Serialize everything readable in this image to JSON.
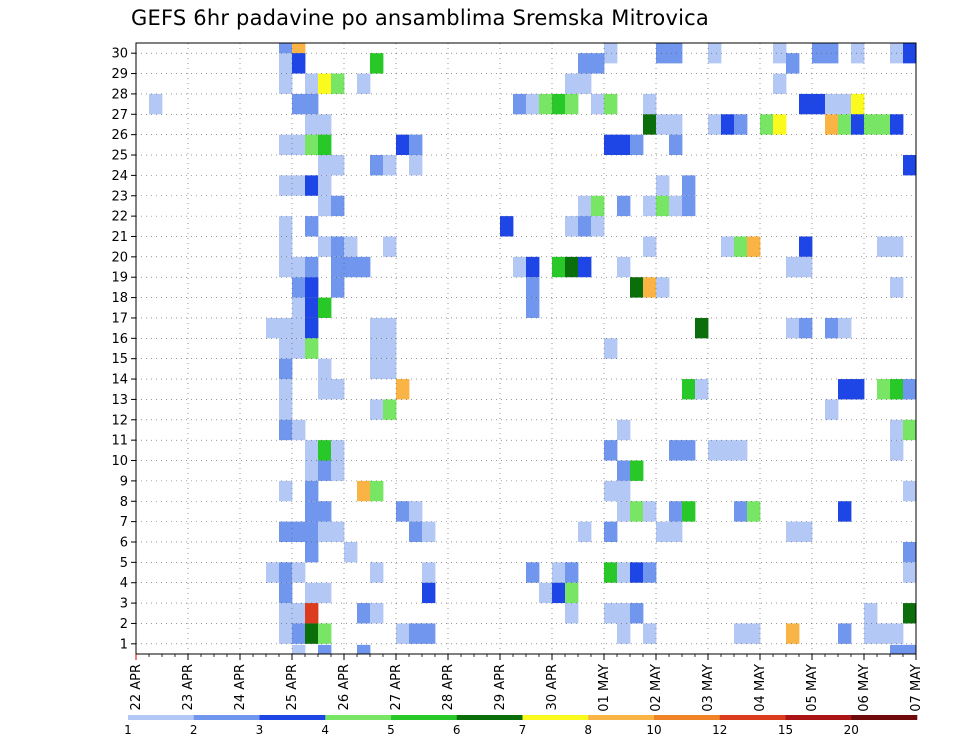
{
  "chart_data": {
    "type": "heatmap",
    "title": "GEFS 6hr padavine po ansamblima Sremska Mitrovica",
    "xlabel": "",
    "ylabel": "",
    "x_tick_labels": [
      "22 APR",
      "23 APR",
      "24 APR",
      "25 APR",
      "26 APR",
      "27 APR",
      "28 APR",
      "29 APR",
      "30 APR",
      "01 MAY",
      "02 MAY",
      "03 MAY",
      "04 MAY",
      "05 MAY",
      "06 MAY",
      "07 MAY"
    ],
    "y_tick_labels": [
      1,
      2,
      3,
      4,
      5,
      6,
      7,
      8,
      9,
      10,
      11,
      12,
      13,
      14,
      15,
      16,
      17,
      18,
      19,
      20,
      21,
      22,
      23,
      24,
      25,
      26,
      27,
      28,
      29,
      30
    ],
    "time_step_hours": 6,
    "steps": 60,
    "members": 30,
    "grid": true,
    "legend_placement": "bottom",
    "colorbar": {
      "labels": [
        "1",
        "2",
        "3",
        "4",
        "5",
        "6",
        "7",
        "8",
        "10",
        "12",
        "15",
        "20"
      ],
      "colors": [
        "#b4c8f5",
        "#7096ee",
        "#1e46e6",
        "#78e664",
        "#28c828",
        "#0a6e0a",
        "#fafa1e",
        "#fab446",
        "#f08228",
        "#dc3c1e",
        "#aa1414",
        "#6e0a0a"
      ]
    },
    "cells": [
      [
        30,
        1,
        11,
        2
      ],
      [
        30,
        1,
        12,
        8
      ],
      [
        30,
        1,
        36,
        1
      ],
      [
        30,
        1,
        40,
        2
      ],
      [
        30,
        1,
        41,
        2
      ],
      [
        30,
        1,
        44,
        1
      ],
      [
        30,
        1,
        49,
        1
      ],
      [
        30,
        1,
        52,
        2
      ],
      [
        30,
        1,
        53,
        2
      ],
      [
        30,
        1,
        55,
        1
      ],
      [
        30,
        1,
        58,
        1
      ],
      [
        30,
        1,
        59,
        3
      ],
      [
        29,
        1,
        11,
        1
      ],
      [
        29,
        1,
        12,
        3
      ],
      [
        29,
        1,
        18,
        5
      ],
      [
        29,
        1,
        34,
        2
      ],
      [
        29,
        1,
        35,
        2
      ],
      [
        29,
        1,
        50,
        2
      ],
      [
        28,
        1,
        11,
        1
      ],
      [
        28,
        1,
        13,
        1
      ],
      [
        28,
        1,
        14,
        7
      ],
      [
        28,
        1,
        15,
        4
      ],
      [
        28,
        1,
        17,
        1
      ],
      [
        28,
        1,
        33,
        1
      ],
      [
        28,
        1,
        34,
        1
      ],
      [
        28,
        1,
        49,
        1
      ],
      [
        27,
        1,
        1,
        1
      ],
      [
        27,
        1,
        12,
        2
      ],
      [
        27,
        1,
        13,
        2
      ],
      [
        27,
        1,
        29,
        2
      ],
      [
        27,
        1,
        30,
        1
      ],
      [
        27,
        1,
        31,
        4
      ],
      [
        27,
        1,
        32,
        5
      ],
      [
        27,
        1,
        33,
        4
      ],
      [
        27,
        1,
        35,
        1
      ],
      [
        27,
        1,
        36,
        4
      ],
      [
        27,
        1,
        39,
        1
      ],
      [
        27,
        1,
        51,
        3
      ],
      [
        27,
        1,
        52,
        3
      ],
      [
        27,
        1,
        53,
        1
      ],
      [
        27,
        1,
        54,
        1
      ],
      [
        27,
        1,
        55,
        7
      ],
      [
        26,
        1,
        13,
        1
      ],
      [
        26,
        1,
        14,
        1
      ],
      [
        26,
        1,
        39,
        6
      ],
      [
        26,
        1,
        40,
        1
      ],
      [
        26,
        1,
        41,
        1
      ],
      [
        26,
        1,
        44,
        1
      ],
      [
        26,
        1,
        45,
        3
      ],
      [
        26,
        1,
        46,
        2
      ],
      [
        26,
        1,
        48,
        4
      ],
      [
        26,
        1,
        49,
        7
      ],
      [
        26,
        1,
        53,
        8
      ],
      [
        26,
        1,
        54,
        4
      ],
      [
        26,
        1,
        55,
        3
      ],
      [
        26,
        1,
        56,
        4
      ],
      [
        26,
        1,
        57,
        4
      ],
      [
        26,
        1,
        58,
        3
      ],
      [
        25,
        1,
        11,
        1
      ],
      [
        25,
        1,
        12,
        1
      ],
      [
        25,
        1,
        13,
        4
      ],
      [
        25,
        1,
        14,
        5
      ],
      [
        25,
        1,
        20,
        3
      ],
      [
        25,
        1,
        21,
        2
      ],
      [
        25,
        1,
        36,
        3
      ],
      [
        25,
        1,
        37,
        3
      ],
      [
        25,
        1,
        38,
        2
      ],
      [
        25,
        1,
        41,
        2
      ],
      [
        24,
        1,
        14,
        1
      ],
      [
        24,
        1,
        15,
        1
      ],
      [
        24,
        1,
        18,
        2
      ],
      [
        24,
        1,
        19,
        1
      ],
      [
        24,
        1,
        21,
        1
      ],
      [
        24,
        1,
        59,
        3
      ],
      [
        23,
        1,
        11,
        1
      ],
      [
        23,
        1,
        12,
        1
      ],
      [
        23,
        1,
        13,
        3
      ],
      [
        23,
        1,
        14,
        1
      ],
      [
        23,
        1,
        40,
        1
      ],
      [
        23,
        1,
        42,
        2
      ],
      [
        22,
        1,
        14,
        1
      ],
      [
        22,
        1,
        15,
        2
      ],
      [
        22,
        1,
        34,
        1
      ],
      [
        22,
        1,
        35,
        4
      ],
      [
        22,
        1,
        37,
        2
      ],
      [
        22,
        1,
        39,
        1
      ],
      [
        22,
        1,
        40,
        4
      ],
      [
        22,
        1,
        41,
        1
      ],
      [
        22,
        1,
        42,
        2
      ],
      [
        21,
        1,
        11,
        1
      ],
      [
        21,
        1,
        13,
        2
      ],
      [
        21,
        1,
        28,
        3
      ],
      [
        21,
        1,
        33,
        1
      ],
      [
        21,
        1,
        34,
        2
      ],
      [
        21,
        1,
        35,
        1
      ],
      [
        20,
        1,
        11,
        1
      ],
      [
        20,
        1,
        14,
        1
      ],
      [
        20,
        1,
        15,
        2
      ],
      [
        20,
        1,
        16,
        1
      ],
      [
        20,
        1,
        19,
        1
      ],
      [
        20,
        1,
        39,
        1
      ],
      [
        20,
        1,
        45,
        1
      ],
      [
        20,
        1,
        46,
        4
      ],
      [
        20,
        1,
        47,
        8
      ],
      [
        20,
        1,
        51,
        3
      ],
      [
        20,
        1,
        57,
        1
      ],
      [
        20,
        1,
        58,
        1
      ],
      [
        19,
        1,
        11,
        1
      ],
      [
        19,
        1,
        12,
        1
      ],
      [
        19,
        1,
        13,
        2
      ],
      [
        19,
        1,
        15,
        2
      ],
      [
        19,
        1,
        16,
        2
      ],
      [
        19,
        1,
        17,
        2
      ],
      [
        19,
        1,
        29,
        1
      ],
      [
        19,
        1,
        30,
        3
      ],
      [
        19,
        1,
        32,
        5
      ],
      [
        19,
        1,
        33,
        6
      ],
      [
        19,
        1,
        34,
        3
      ],
      [
        19,
        1,
        37,
        1
      ],
      [
        19,
        1,
        50,
        1
      ],
      [
        19,
        1,
        51,
        1
      ],
      [
        18,
        1,
        12,
        2
      ],
      [
        18,
        1,
        13,
        3
      ],
      [
        18,
        1,
        15,
        2
      ],
      [
        18,
        1,
        30,
        2
      ],
      [
        18,
        1,
        38,
        6
      ],
      [
        18,
        1,
        39,
        8
      ],
      [
        18,
        1,
        40,
        1
      ],
      [
        18,
        1,
        58,
        1
      ],
      [
        17,
        1,
        12,
        1
      ],
      [
        17,
        1,
        13,
        3
      ],
      [
        17,
        1,
        14,
        5
      ],
      [
        17,
        1,
        30,
        2
      ],
      [
        16,
        1,
        10,
        1
      ],
      [
        16,
        1,
        11,
        1
      ],
      [
        16,
        1,
        12,
        1
      ],
      [
        16,
        1,
        13,
        3
      ],
      [
        16,
        1,
        18,
        1
      ],
      [
        16,
        1,
        19,
        1
      ],
      [
        16,
        1,
        43,
        6
      ],
      [
        16,
        1,
        50,
        1
      ],
      [
        16,
        1,
        51,
        2
      ],
      [
        16,
        1,
        53,
        2
      ],
      [
        16,
        1,
        54,
        1
      ],
      [
        15,
        1,
        11,
        1
      ],
      [
        15,
        1,
        12,
        1
      ],
      [
        15,
        1,
        13,
        4
      ],
      [
        15,
        1,
        18,
        1
      ],
      [
        15,
        1,
        19,
        1
      ],
      [
        15,
        1,
        36,
        1
      ],
      [
        14,
        1,
        11,
        2
      ],
      [
        14,
        1,
        14,
        1
      ],
      [
        14,
        1,
        18,
        1
      ],
      [
        14,
        1,
        19,
        1
      ],
      [
        13,
        1,
        11,
        1
      ],
      [
        13,
        1,
        14,
        1
      ],
      [
        13,
        1,
        15,
        1
      ],
      [
        13,
        1,
        20,
        8
      ],
      [
        13,
        1,
        42,
        5
      ],
      [
        13,
        1,
        43,
        1
      ],
      [
        13,
        1,
        54,
        3
      ],
      [
        13,
        1,
        55,
        3
      ],
      [
        13,
        1,
        57,
        4
      ],
      [
        13,
        1,
        58,
        5
      ],
      [
        13,
        1,
        59,
        2
      ],
      [
        12,
        1,
        11,
        1
      ],
      [
        12,
        1,
        18,
        1
      ],
      [
        12,
        1,
        19,
        4
      ],
      [
        12,
        1,
        53,
        1
      ],
      [
        11,
        1,
        11,
        2
      ],
      [
        11,
        1,
        12,
        1
      ],
      [
        11,
        1,
        37,
        1
      ],
      [
        11,
        1,
        58,
        1
      ],
      [
        11,
        1,
        59,
        4
      ],
      [
        10,
        1,
        13,
        1
      ],
      [
        10,
        1,
        14,
        5
      ],
      [
        10,
        1,
        15,
        1
      ],
      [
        10,
        1,
        36,
        2
      ],
      [
        10,
        1,
        41,
        2
      ],
      [
        10,
        1,
        42,
        2
      ],
      [
        10,
        1,
        44,
        1
      ],
      [
        10,
        1,
        45,
        1
      ],
      [
        10,
        1,
        46,
        1
      ],
      [
        10,
        1,
        58,
        1
      ],
      [
        9,
        1,
        13,
        1
      ],
      [
        9,
        1,
        14,
        2
      ],
      [
        9,
        1,
        15,
        1
      ],
      [
        9,
        1,
        37,
        2
      ],
      [
        9,
        1,
        38,
        5
      ],
      [
        8,
        1,
        11,
        1
      ],
      [
        8,
        1,
        13,
        2
      ],
      [
        8,
        1,
        17,
        8
      ],
      [
        8,
        1,
        18,
        4
      ],
      [
        8,
        1,
        36,
        1
      ],
      [
        8,
        1,
        37,
        1
      ],
      [
        8,
        1,
        59,
        1
      ],
      [
        7,
        1,
        13,
        2
      ],
      [
        7,
        1,
        14,
        2
      ],
      [
        7,
        1,
        20,
        2
      ],
      [
        7,
        1,
        21,
        1
      ],
      [
        7,
        1,
        37,
        1
      ],
      [
        7,
        1,
        38,
        4
      ],
      [
        7,
        1,
        39,
        1
      ],
      [
        7,
        1,
        41,
        2
      ],
      [
        7,
        1,
        42,
        5
      ],
      [
        7,
        1,
        46,
        2
      ],
      [
        7,
        1,
        47,
        4
      ],
      [
        7,
        1,
        54,
        3
      ],
      [
        6,
        1,
        11,
        2
      ],
      [
        6,
        1,
        12,
        2
      ],
      [
        6,
        1,
        13,
        2
      ],
      [
        6,
        1,
        14,
        1
      ],
      [
        6,
        1,
        15,
        1
      ],
      [
        6,
        1,
        21,
        2
      ],
      [
        6,
        1,
        22,
        1
      ],
      [
        6,
        1,
        34,
        1
      ],
      [
        6,
        1,
        36,
        2
      ],
      [
        6,
        1,
        40,
        1
      ],
      [
        6,
        1,
        41,
        1
      ],
      [
        6,
        1,
        50,
        1
      ],
      [
        6,
        1,
        51,
        1
      ],
      [
        5,
        1,
        13,
        2
      ],
      [
        5,
        1,
        16,
        1
      ],
      [
        5,
        1,
        59,
        2
      ],
      [
        4,
        1,
        10,
        1
      ],
      [
        4,
        1,
        11,
        2
      ],
      [
        4,
        1,
        12,
        1
      ],
      [
        4,
        1,
        18,
        1
      ],
      [
        4,
        1,
        22,
        1
      ],
      [
        4,
        1,
        30,
        2
      ],
      [
        4,
        1,
        32,
        1
      ],
      [
        4,
        1,
        33,
        2
      ],
      [
        4,
        1,
        36,
        5
      ],
      [
        4,
        1,
        37,
        1
      ],
      [
        4,
        1,
        38,
        3
      ],
      [
        4,
        1,
        39,
        2
      ],
      [
        4,
        1,
        59,
        1
      ],
      [
        3,
        1,
        11,
        2
      ],
      [
        3,
        1,
        13,
        1
      ],
      [
        3,
        1,
        14,
        1
      ],
      [
        3,
        1,
        22,
        3
      ],
      [
        3,
        1,
        31,
        1
      ],
      [
        3,
        1,
        32,
        3
      ],
      [
        3,
        1,
        33,
        4
      ],
      [
        2,
        1,
        11,
        1
      ],
      [
        2,
        1,
        12,
        1
      ],
      [
        2,
        1,
        13,
        10
      ],
      [
        2,
        1,
        17,
        2
      ],
      [
        2,
        1,
        18,
        1
      ],
      [
        2,
        1,
        33,
        1
      ],
      [
        2,
        1,
        36,
        1
      ],
      [
        2,
        1,
        37,
        1
      ],
      [
        2,
        1,
        38,
        2
      ],
      [
        2,
        1,
        56,
        1
      ],
      [
        2,
        1,
        59,
        6
      ],
      [
        1,
        1,
        11,
        1
      ],
      [
        1,
        1,
        12,
        2
      ],
      [
        1,
        1,
        13,
        6
      ],
      [
        1,
        1,
        14,
        4
      ],
      [
        1,
        1,
        20,
        1
      ],
      [
        1,
        1,
        21,
        2
      ],
      [
        1,
        1,
        22,
        2
      ],
      [
        1,
        1,
        37,
        1
      ],
      [
        1,
        1,
        39,
        1
      ],
      [
        1,
        1,
        46,
        1
      ],
      [
        1,
        1,
        47,
        1
      ],
      [
        1,
        1,
        50,
        8
      ],
      [
        1,
        1,
        54,
        2
      ],
      [
        1,
        1,
        56,
        1
      ],
      [
        1,
        1,
        57,
        1
      ],
      [
        1,
        1,
        58,
        1
      ],
      [
        0,
        1,
        12,
        1
      ],
      [
        0,
        1,
        14,
        2
      ],
      [
        0,
        1,
        17,
        2
      ],
      [
        0,
        1,
        58,
        2
      ],
      [
        0,
        1,
        59,
        2
      ]
    ]
  }
}
